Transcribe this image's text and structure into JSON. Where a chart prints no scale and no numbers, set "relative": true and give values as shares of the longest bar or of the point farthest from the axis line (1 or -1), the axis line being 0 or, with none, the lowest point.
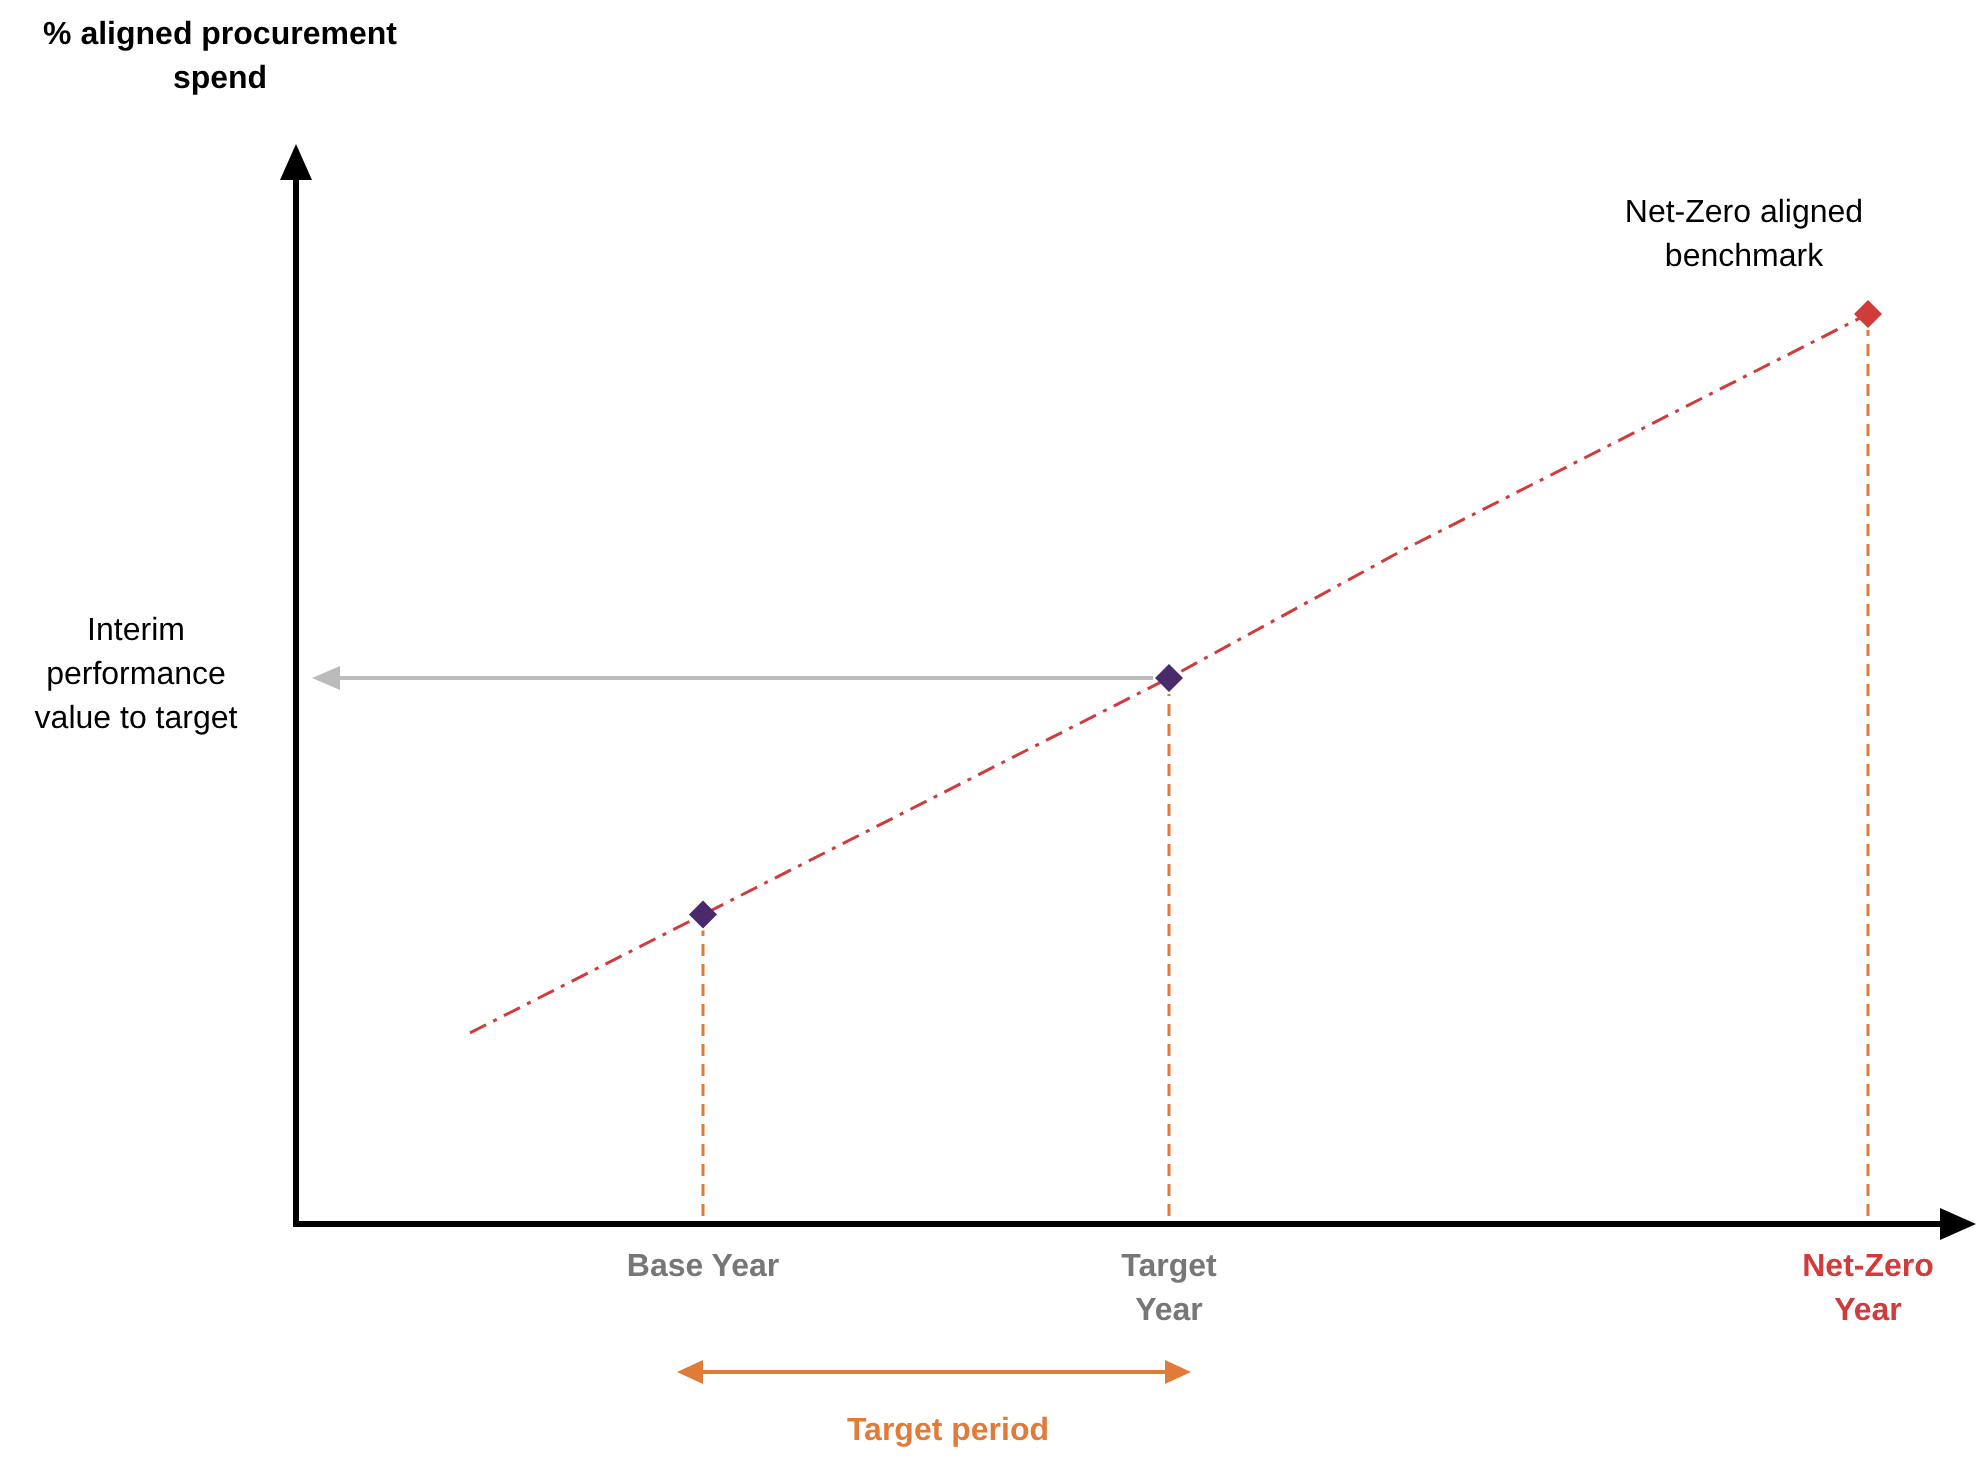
{
  "chart_data": {
    "type": "line",
    "relative": true,
    "categories": [
      null,
      "Base Year",
      null,
      "Target Year",
      null,
      null,
      "Net-Zero Year"
    ],
    "series": [
      {
        "color": "#d03b3b",
        "line_style": "dashed",
        "marker": "none",
        "values": [
          0.21,
          0.34,
          0.47,
          0.6,
          0.74,
          0.87,
          1
        ]
      },
      {
        "type": "scatter",
        "marker": "diamond",
        "colors": [
          null,
          "#4b2a6b",
          null,
          "#4b2a6b",
          null,
          null,
          "#d03b3b"
        ],
        "values": [
          null,
          0.34,
          null,
          0.6,
          null,
          null,
          1
        ]
      }
    ],
    "annotations": [
      "% aligned procurement spend",
      "Interim performance value to target",
      {
        "text": "Net-Zero aligned benchmark",
        "x": "Net-Zero Year",
        "y": 1
      },
      "Target period"
    ]
  }
}
